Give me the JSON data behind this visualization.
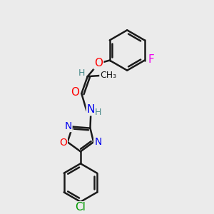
{
  "bg_color": "#ebebeb",
  "bond_color": "#1a1a1a",
  "bond_width": 1.8,
  "atom_colors": {
    "O": "#ff0000",
    "N": "#0000ee",
    "F": "#ee00ee",
    "Cl": "#009900",
    "C": "#1a1a1a",
    "H": "#4a8a8a"
  },
  "font_size": 10,
  "fig_size": [
    3.0,
    3.0
  ],
  "dpi": 100
}
